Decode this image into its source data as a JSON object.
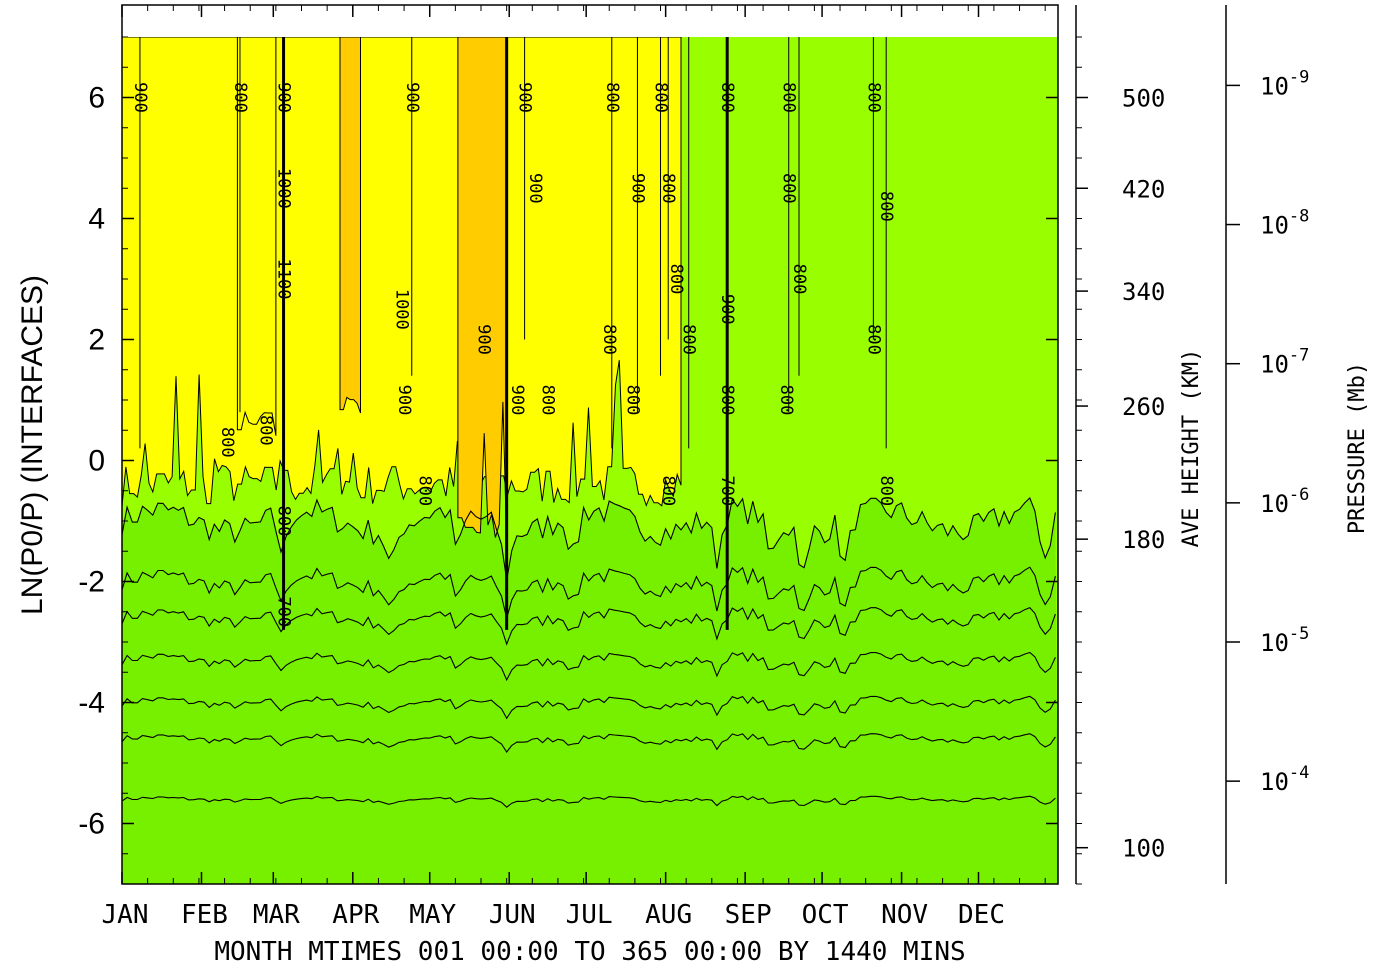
{
  "chart_data": {
    "type": "heatmap",
    "subtype": "filled-contour",
    "ylabel": "LN(P0/P) (INTERFACES)",
    "yticks": [
      "6",
      "4",
      "2",
      "0",
      "-2",
      "-4",
      "-6"
    ],
    "ylim": [
      -7,
      7
    ],
    "xticks": [
      "JAN",
      "FEB",
      "MAR",
      "APR",
      "MAY",
      "JUN",
      "JUL",
      "AUG",
      "SEP",
      "OCT",
      "NOV",
      "DEC"
    ],
    "xlabel": "MONTH MTIMES 001 00:00 TO 365 00:00 BY 1440 MINS",
    "height_axis": {
      "label": "AVE HEIGHT (KM)",
      "ticks": [
        {
          "label": "500",
          "lnp": 6.0
        },
        {
          "label": "420",
          "lnp": 4.5
        },
        {
          "label": "340",
          "lnp": 2.8
        },
        {
          "label": "260",
          "lnp": 0.9
        },
        {
          "label": "180",
          "lnp": -1.3
        },
        {
          "label": "100",
          "lnp": -6.4
        }
      ]
    },
    "pressure_axis": {
      "label": "PRESSURE (Mb)",
      "ticks": [
        {
          "label": "10",
          "exp": "-9",
          "lnp": 6.2
        },
        {
          "label": "10",
          "exp": "-8",
          "lnp": 3.9
        },
        {
          "label": "10",
          "exp": "-7",
          "lnp": 1.6
        },
        {
          "label": "10",
          "exp": "-6",
          "lnp": -0.7
        },
        {
          "label": "10",
          "exp": "-5",
          "lnp": -3.0
        },
        {
          "label": "10",
          "exp": "-4",
          "lnp": -5.3
        }
      ]
    },
    "levels": [
      {
        "lower_lnp": -7.0,
        "upper_lnp": -5.6,
        "color": "#0033ee"
      },
      {
        "lower_lnp": -5.6,
        "upper_lnp": -4.6,
        "color": "#00bfff"
      },
      {
        "lower_lnp": -4.6,
        "upper_lnp": -4.0,
        "color": "#00ffff"
      },
      {
        "lower_lnp": -4.0,
        "upper_lnp": -3.3,
        "color": "#00ffaa"
      },
      {
        "lower_lnp": -3.3,
        "upper_lnp": -2.6,
        "color": "#00ee55"
      },
      {
        "lower_lnp": -2.6,
        "upper_lnp": -2.0,
        "color": "#33ee00"
      },
      {
        "lower_lnp": -2.0,
        "upper_lnp": -1.0,
        "color": "#77f000"
      },
      {
        "lower_lnp": -1.0,
        "upper_lnp": 6.5,
        "color": "#99ff00"
      }
    ],
    "warm_regions": [
      {
        "day_start": 0,
        "day_end": 218,
        "bottom_lnp": -0.4,
        "color": "#ffff00"
      },
      {
        "day_start": 131,
        "day_end": 150,
        "bottom_lnp": -1.2,
        "color": "#ffcc00"
      },
      {
        "day_start": 85,
        "day_end": 93,
        "bottom_lnp": 1.0,
        "color": "#ffcc00"
      },
      {
        "day_start": 45,
        "day_end": 60,
        "bottom_lnp": 0.5,
        "color": "#ffff00"
      }
    ],
    "contour_labels": [
      {
        "text": "900",
        "day": 7,
        "lnp": 6.0
      },
      {
        "text": "800",
        "day": 46,
        "lnp": 6.0
      },
      {
        "text": "900",
        "day": 63,
        "lnp": 6.0
      },
      {
        "text": "1000",
        "day": 63,
        "lnp": 4.5
      },
      {
        "text": "1100",
        "day": 63,
        "lnp": 3.0
      },
      {
        "text": "800",
        "day": 63,
        "lnp": -1.0
      },
      {
        "text": "700",
        "day": 63,
        "lnp": -2.5
      },
      {
        "text": "800",
        "day": 41,
        "lnp": 0.3
      },
      {
        "text": "800",
        "day": 56,
        "lnp": 0.5
      },
      {
        "text": "900",
        "day": 113,
        "lnp": 6.0
      },
      {
        "text": "1000",
        "day": 109,
        "lnp": 2.5
      },
      {
        "text": "900",
        "day": 110,
        "lnp": 1.0
      },
      {
        "text": "800",
        "day": 118,
        "lnp": -0.5
      },
      {
        "text": "900",
        "day": 141,
        "lnp": 2.0
      },
      {
        "text": "900",
        "day": 157,
        "lnp": 6.0
      },
      {
        "text": "900",
        "day": 161,
        "lnp": 4.5
      },
      {
        "text": "900",
        "day": 154,
        "lnp": 1.0
      },
      {
        "text": "800",
        "day": 166,
        "lnp": 1.0
      },
      {
        "text": "800",
        "day": 191,
        "lnp": 6.0
      },
      {
        "text": "800",
        "day": 190,
        "lnp": 2.0
      },
      {
        "text": "900",
        "day": 201,
        "lnp": 4.5
      },
      {
        "text": "800",
        "day": 199,
        "lnp": 1.0
      },
      {
        "text": "800",
        "day": 210,
        "lnp": 6.0
      },
      {
        "text": "800",
        "day": 213,
        "lnp": 4.5
      },
      {
        "text": "800",
        "day": 216,
        "lnp": 3.0
      },
      {
        "text": "800",
        "day": 221,
        "lnp": 2.0
      },
      {
        "text": "800",
        "day": 213,
        "lnp": -0.5
      },
      {
        "text": "800",
        "day": 236,
        "lnp": 6.0
      },
      {
        "text": "900",
        "day": 236,
        "lnp": 2.5
      },
      {
        "text": "800",
        "day": 236,
        "lnp": 1.0
      },
      {
        "text": "700",
        "day": 236,
        "lnp": -0.5
      },
      {
        "text": "800",
        "day": 260,
        "lnp": 6.0
      },
      {
        "text": "800",
        "day": 260,
        "lnp": 4.5
      },
      {
        "text": "800",
        "day": 264,
        "lnp": 3.0
      },
      {
        "text": "800",
        "day": 259,
        "lnp": 1.0
      },
      {
        "text": "800",
        "day": 293,
        "lnp": 6.0
      },
      {
        "text": "800",
        "day": 298,
        "lnp": 4.2
      },
      {
        "text": "800",
        "day": 293,
        "lnp": 2.0
      },
      {
        "text": "800",
        "day": 298,
        "lnp": -0.5
      }
    ]
  }
}
